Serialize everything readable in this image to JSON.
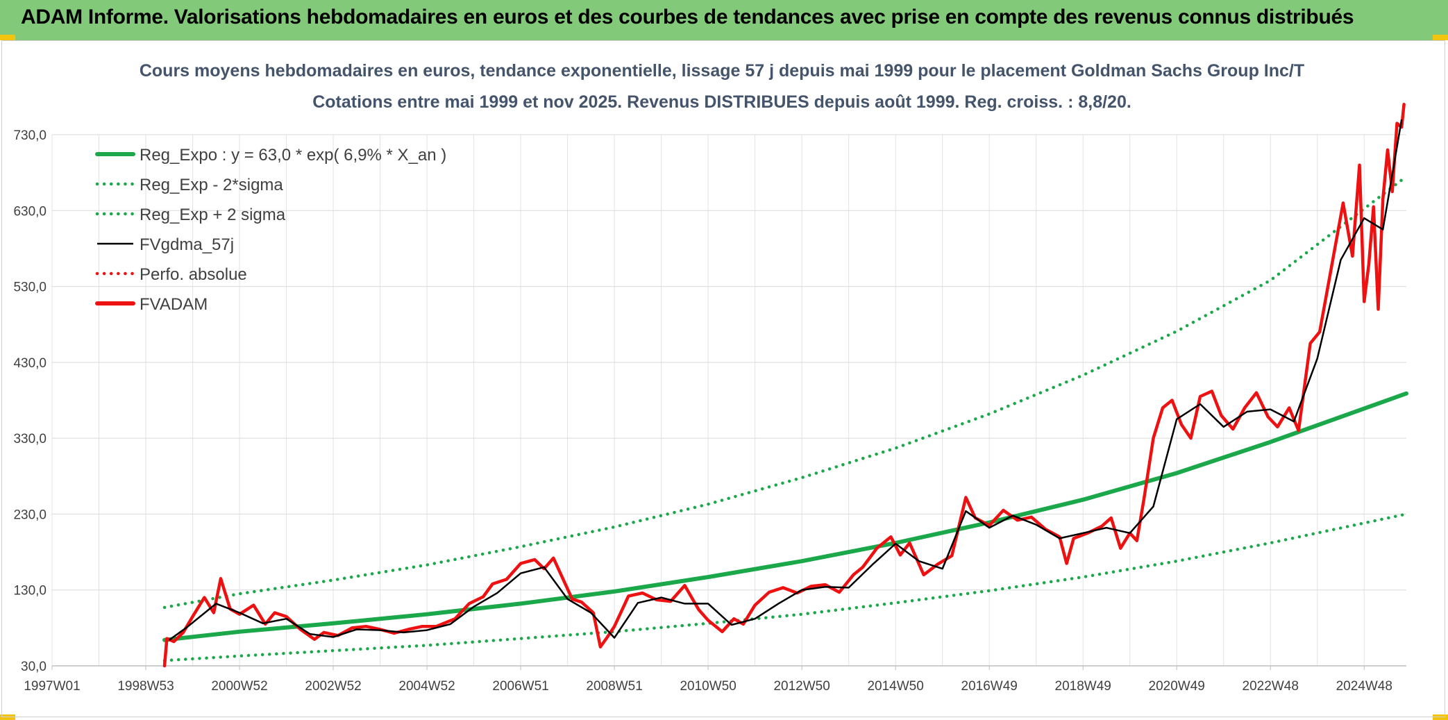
{
  "header": {
    "title": "ADAM Informe. Valorisations hebdomadaires en euros et des courbes de tendances avec prise en compte des revenus connus distribués"
  },
  "colors": {
    "banner": "#82c97a",
    "reg_green": "#1aa84a",
    "fvadam_red": "#ee1111",
    "fvgdma_black": "#000000",
    "title_text": "#44546a"
  },
  "chart_data": {
    "type": "line",
    "title": "Cours moyens hebdomadaires en euros, tendance exponentielle, lissage 57 j depuis mai 1999 pour le placement Goldman Sachs Group Inc/T",
    "subtitle": "Cotations entre mai 1999 et nov 2025. Revenus DISTRIBUES depuis août 1999. Reg. croiss. : 8,8/20.",
    "xlabel": "",
    "ylabel": "",
    "xlim": [
      1997.0,
      2025.9
    ],
    "ylim": [
      30,
      730
    ],
    "y_ticks": [
      30,
      130,
      230,
      330,
      430,
      530,
      630,
      730
    ],
    "y_tick_labels": [
      "30,0",
      "130,0",
      "230,0",
      "330,0",
      "430,0",
      "530,0",
      "630,0",
      "730,0"
    ],
    "x_ticks": [
      1997.0,
      1999.0,
      2001.0,
      2003.0,
      2005.0,
      2007.0,
      2009.0,
      2011.0,
      2013.0,
      2015.0,
      2017.0,
      2019.0,
      2021.0,
      2023.0,
      2025.0
    ],
    "x_tick_labels": [
      "1997W01",
      "1998W53",
      "2000W52",
      "2002W52",
      "2004W52",
      "2006W51",
      "2008W51",
      "2010W50",
      "2012W50",
      "2014W50",
      "2016W49",
      "2018W49",
      "2020W49",
      "2022W48",
      "2024W48"
    ],
    "grid": true,
    "legend_position": "top-left",
    "legend": [
      {
        "key": "reg",
        "label": "Reg_Expo : y = 63,0 * exp( 6,9% *  X_an )",
        "color": "#1aa84a",
        "style": "solid-thick"
      },
      {
        "key": "reg_minus",
        "label": "Reg_Exp - 2*sigma",
        "color": "#1aa84a",
        "style": "dotted"
      },
      {
        "key": "reg_plus",
        "label": "Reg_Exp + 2 sigma",
        "color": "#1aa84a",
        "style": "dotted"
      },
      {
        "key": "fvgdma",
        "label": "FVgdma_57j",
        "color": "#000000",
        "style": "solid"
      },
      {
        "key": "perfo",
        "label": "Perfo. absolue",
        "color": "#ee1111",
        "style": "dotted"
      },
      {
        "key": "fvadam",
        "label": "FVADAM",
        "color": "#ee1111",
        "style": "solid-thick"
      }
    ],
    "series": [
      {
        "key": "reg",
        "x": [
          1999.4,
          2001,
          2003,
          2005,
          2007,
          2009,
          2011,
          2013,
          2015,
          2017,
          2019,
          2021,
          2023,
          2025.9
        ],
        "values": [
          64,
          75,
          86,
          98,
          112,
          128,
          147,
          168,
          192,
          219,
          249,
          284,
          325,
          389
        ]
      },
      {
        "key": "reg_minus",
        "x": [
          1999.4,
          2001,
          2003,
          2005,
          2007,
          2009,
          2011,
          2013,
          2015,
          2017,
          2019,
          2021,
          2023,
          2025.9
        ],
        "values": [
          37,
          43,
          50,
          57,
          66,
          75,
          86,
          98,
          113,
          129,
          147,
          168,
          192,
          230
        ]
      },
      {
        "key": "reg_plus",
        "x": [
          1999.4,
          2001,
          2003,
          2005,
          2007,
          2009,
          2011,
          2013,
          2015,
          2017,
          2019,
          2021,
          2023,
          2025.9
        ],
        "values": [
          107,
          125,
          143,
          163,
          187,
          213,
          243,
          278,
          317,
          362,
          413,
          471,
          538,
          675
        ]
      },
      {
        "key": "fvgdma",
        "x": [
          1999.5,
          1999.9,
          2000.5,
          2001.0,
          2001.5,
          2002.0,
          2002.5,
          2003.0,
          2003.5,
          2004.0,
          2004.5,
          2005.0,
          2005.5,
          2006.0,
          2006.5,
          2007.0,
          2007.5,
          2008.0,
          2008.5,
          2009.0,
          2009.5,
          2010.0,
          2010.5,
          2011.0,
          2011.5,
          2012.0,
          2012.5,
          2013.0,
          2013.5,
          2014.0,
          2014.5,
          2015.0,
          2015.5,
          2016.0,
          2016.5,
          2017.0,
          2017.5,
          2018.0,
          2018.5,
          2019.0,
          2019.5,
          2020.0,
          2020.5,
          2021.0,
          2021.5,
          2022.0,
          2022.5,
          2023.0,
          2023.5,
          2024.0,
          2024.5,
          2025.0,
          2025.4,
          2025.8
        ],
        "values": [
          64,
          82,
          112,
          100,
          86,
          92,
          72,
          68,
          78,
          77,
          74,
          77,
          85,
          108,
          126,
          152,
          160,
          118,
          100,
          67,
          113,
          120,
          112,
          112,
          84,
          92,
          112,
          130,
          134,
          133,
          163,
          191,
          168,
          158,
          234,
          212,
          228,
          216,
          198,
          205,
          212,
          205,
          240,
          355,
          375,
          345,
          365,
          368,
          352,
          435,
          565,
          620,
          605,
          750
        ]
      },
      {
        "key": "perfo",
        "x": [],
        "values": []
      },
      {
        "key": "fvadam",
        "x": [
          1999.4,
          1999.45,
          1999.6,
          1999.8,
          2000.0,
          2000.25,
          2000.45,
          2000.6,
          2000.8,
          2001.0,
          2001.3,
          2001.55,
          2001.75,
          2002.0,
          2002.3,
          2002.6,
          2002.8,
          2003.1,
          2003.4,
          2003.7,
          2004.0,
          2004.3,
          2004.6,
          2004.9,
          2005.2,
          2005.6,
          2005.9,
          2006.2,
          2006.4,
          2006.7,
          2007.0,
          2007.3,
          2007.5,
          2007.7,
          2007.9,
          2008.1,
          2008.3,
          2008.55,
          2008.7,
          2008.85,
          2009.0,
          2009.3,
          2009.6,
          2009.9,
          2010.2,
          2010.5,
          2010.8,
          2011.0,
          2011.3,
          2011.55,
          2011.75,
          2012.0,
          2012.3,
          2012.6,
          2012.9,
          2013.2,
          2013.5,
          2013.8,
          2014.1,
          2014.3,
          2014.6,
          2014.9,
          2015.1,
          2015.3,
          2015.6,
          2015.9,
          2016.2,
          2016.5,
          2016.7,
          2017.0,
          2017.3,
          2017.6,
          2017.9,
          2018.2,
          2018.5,
          2018.65,
          2018.8,
          2019.1,
          2019.4,
          2019.6,
          2019.8,
          2020.0,
          2020.15,
          2020.3,
          2020.5,
          2020.7,
          2020.9,
          2021.1,
          2021.3,
          2021.5,
          2021.75,
          2021.95,
          2022.2,
          2022.45,
          2022.7,
          2022.95,
          2023.15,
          2023.4,
          2023.6,
          2023.85,
          2024.05,
          2024.3,
          2024.55,
          2024.75,
          2024.9,
          2025.0,
          2025.1,
          2025.2,
          2025.3,
          2025.4,
          2025.5,
          2025.6,
          2025.7,
          2025.8,
          2025.85
        ],
        "values": [
          30,
          66,
          62,
          74,
          95,
          120,
          100,
          145,
          105,
          98,
          110,
          85,
          100,
          95,
          78,
          65,
          74,
          70,
          80,
          82,
          78,
          73,
          78,
          82,
          82,
          92,
          112,
          121,
          138,
          144,
          165,
          170,
          158,
          172,
          145,
          118,
          114,
          100,
          55,
          68,
          82,
          122,
          126,
          117,
          115,
          136,
          104,
          90,
          75,
          92,
          85,
          110,
          127,
          133,
          126,
          135,
          137,
          127,
          150,
          160,
          185,
          200,
          176,
          192,
          150,
          164,
          175,
          252,
          225,
          215,
          235,
          222,
          226,
          210,
          200,
          165,
          198,
          205,
          214,
          225,
          185,
          205,
          195,
          250,
          330,
          370,
          380,
          348,
          330,
          385,
          392,
          360,
          342,
          370,
          390,
          358,
          345,
          370,
          340,
          455,
          470,
          555,
          640,
          570,
          690,
          510,
          560,
          635,
          500,
          645,
          710,
          655,
          745,
          740,
          770
        ]
      }
    ]
  }
}
